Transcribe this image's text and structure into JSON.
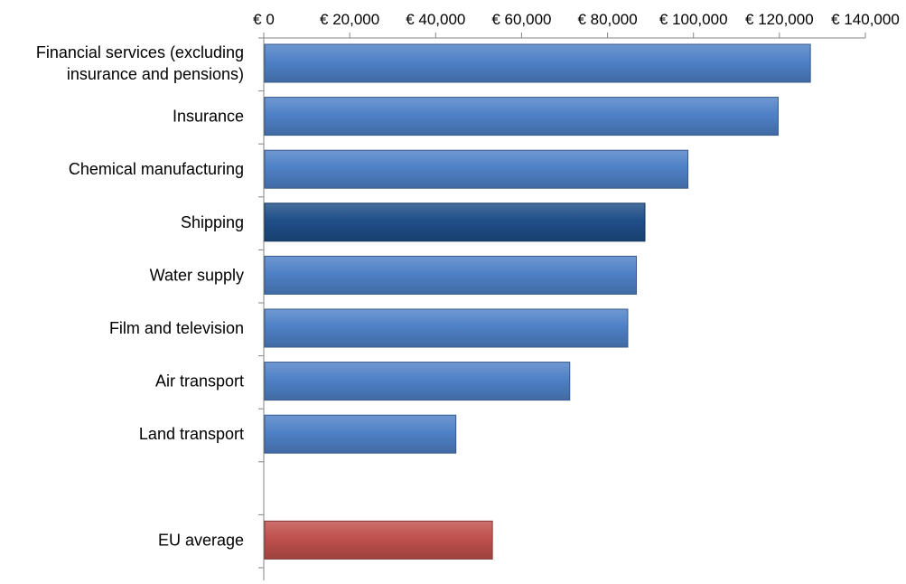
{
  "chart_data": {
    "type": "bar",
    "orientation": "horizontal",
    "x_axis_position": "top",
    "grid": false,
    "legend": "none",
    "xlim": [
      0,
      140000
    ],
    "x_ticks": [
      0,
      20000,
      40000,
      60000,
      80000,
      100000,
      120000,
      140000
    ],
    "x_tick_labels": [
      "€ 0",
      "€ 20,000",
      "€ 40,000",
      "€ 60,000",
      "€ 80,000",
      "€ 100,000",
      "€ 120,000",
      "€ 140,000"
    ],
    "categories": [
      [
        "Financial services (excluding",
        "insurance and pensions)"
      ],
      [
        "Insurance"
      ],
      [
        "Chemical manufacturing"
      ],
      [
        "Shipping"
      ],
      [
        "Water supply"
      ],
      [
        "Film and television"
      ],
      [
        "Air transport"
      ],
      [
        "Land transport"
      ],
      [],
      [
        "EU average"
      ]
    ],
    "values": [
      127000,
      119500,
      98500,
      88500,
      86500,
      84500,
      71000,
      44500,
      null,
      53000
    ],
    "bar_colors": [
      "#4f81c7",
      "#4f81c7",
      "#4f81c7",
      "#1f4e88",
      "#4f81c7",
      "#4f81c7",
      "#4f81c7",
      "#4f81c7",
      null,
      "#c0504d"
    ],
    "title": "",
    "xlabel": "",
    "ylabel": ""
  }
}
